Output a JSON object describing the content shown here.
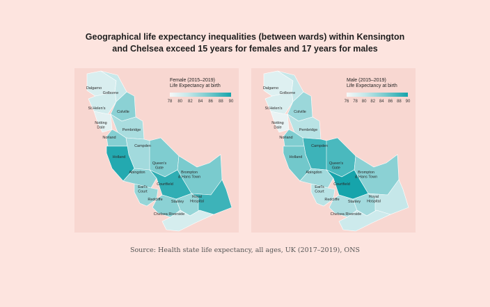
{
  "title_line1": "Geographical life expectancy inequalities (between wards) within Kensington",
  "title_line2": "and Chelsea exceed 15 years for females and 17 years for males",
  "source": "Source: Health state life expectancy, all ages, UK (2017–2019), ONS",
  "colors": {
    "background": "#fde4df",
    "panel": "#f8d7d1",
    "scale_low": "#f6f8f8",
    "scale_high": "#16a4ab"
  },
  "wards": [
    "Dalgarno",
    "Golborne",
    "St.Helen's",
    "Colville",
    "Notting Dale",
    "Pembridge",
    "Norland",
    "Campden",
    "Holland",
    "Queen's Gate",
    "Abingdon",
    "Brompton & Hans Town",
    "Earl's Court",
    "Courtfield",
    "Redcliffe",
    "Stanley",
    "Royal Hospital",
    "Chelsea Riverside"
  ],
  "maps": [
    {
      "id": "female",
      "legend_title_1": "Female (2015–2019)",
      "legend_title_2": "Life Expectancy at birth",
      "scale_min": 78,
      "scale_max": 90,
      "ticks": [
        "78",
        "80",
        "82",
        "84",
        "86",
        "88",
        "90"
      ],
      "levels": [
        0.18,
        0.28,
        0.22,
        0.55,
        0.12,
        0.42,
        0.58,
        0.45,
        0.95,
        0.6,
        0.55,
        0.62,
        0.5,
        0.9,
        0.55,
        0.5,
        0.85,
        0.2
      ]
    },
    {
      "id": "male",
      "legend_title_1": "Male (2015–2019)",
      "legend_title_2": "Life Expectancy at birth",
      "scale_min": 76,
      "scale_max": 90,
      "ticks": [
        "76",
        "78",
        "80",
        "82",
        "84",
        "86",
        "88",
        "90"
      ],
      "levels": [
        0.15,
        0.3,
        0.18,
        0.48,
        0.08,
        0.35,
        0.6,
        0.85,
        0.65,
        0.8,
        0.45,
        0.55,
        0.35,
        1.0,
        0.4,
        0.45,
        0.3,
        0.25
      ]
    }
  ]
}
